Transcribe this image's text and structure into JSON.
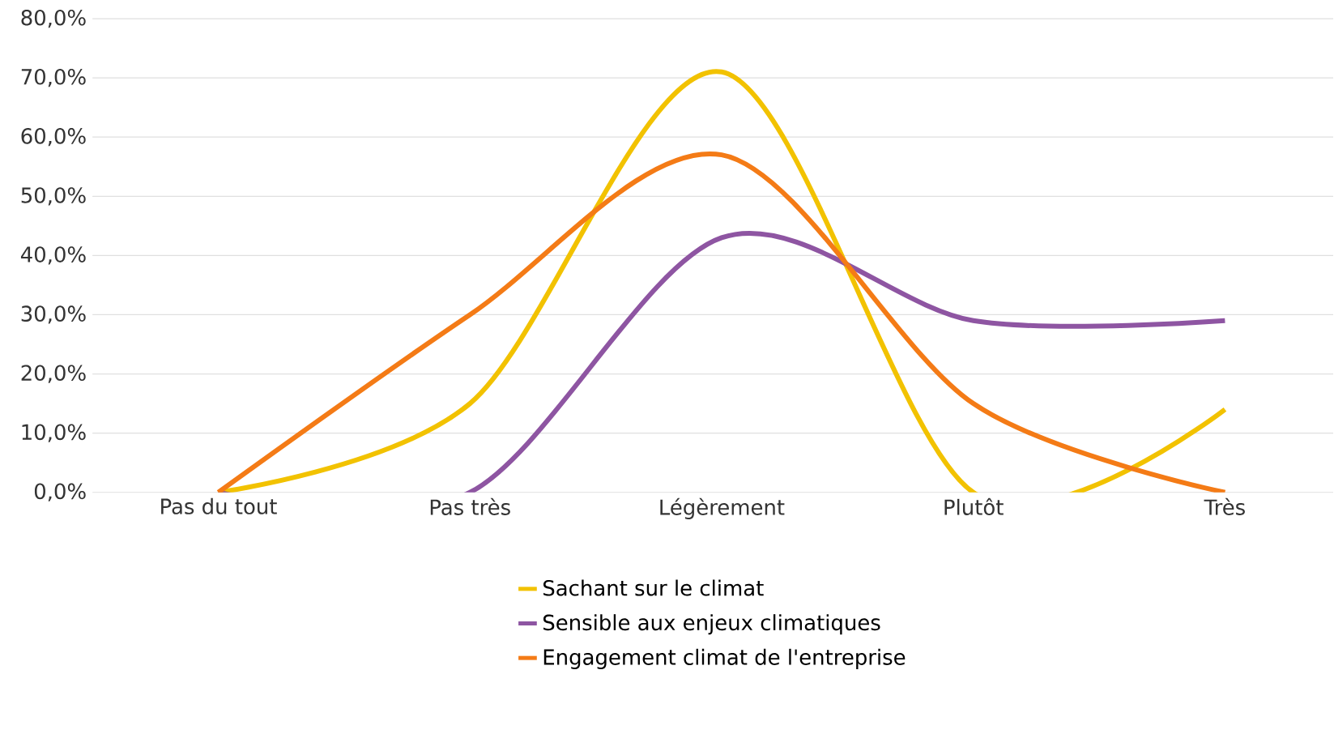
{
  "chart_data": {
    "type": "line",
    "categories": [
      "Pas du tout",
      "Pas très",
      "Légèrement",
      "Plutôt",
      "Très"
    ],
    "series": [
      {
        "name": "Sachant sur le climat",
        "color": "#f2c200",
        "values": [
          0,
          15,
          71,
          0,
          14
        ]
      },
      {
        "name": "Sensible aux enjeux climatiques",
        "color": "#8e55a2",
        "values": [
          0,
          0,
          43,
          29,
          29
        ]
      },
      {
        "name": "Engagement climat de l'entreprise",
        "color": "#f47b16",
        "values": [
          0,
          30,
          57,
          15,
          0
        ]
      }
    ],
    "ylim": [
      0,
      80
    ],
    "yticks": [
      {
        "value": 0,
        "label": "0,0%"
      },
      {
        "value": 10,
        "label": "10,0%"
      },
      {
        "value": 20,
        "label": "20,0%"
      },
      {
        "value": 30,
        "label": "30,0%"
      },
      {
        "value": 40,
        "label": "40,0%"
      },
      {
        "value": 50,
        "label": "50,0%"
      },
      {
        "value": 60,
        "label": "60,0%"
      },
      {
        "value": 70,
        "label": "70,0%"
      },
      {
        "value": 80,
        "label": "80,0%"
      }
    ],
    "grid": "y",
    "legend": "bottom",
    "marker": "none",
    "line_style": "solid"
  }
}
